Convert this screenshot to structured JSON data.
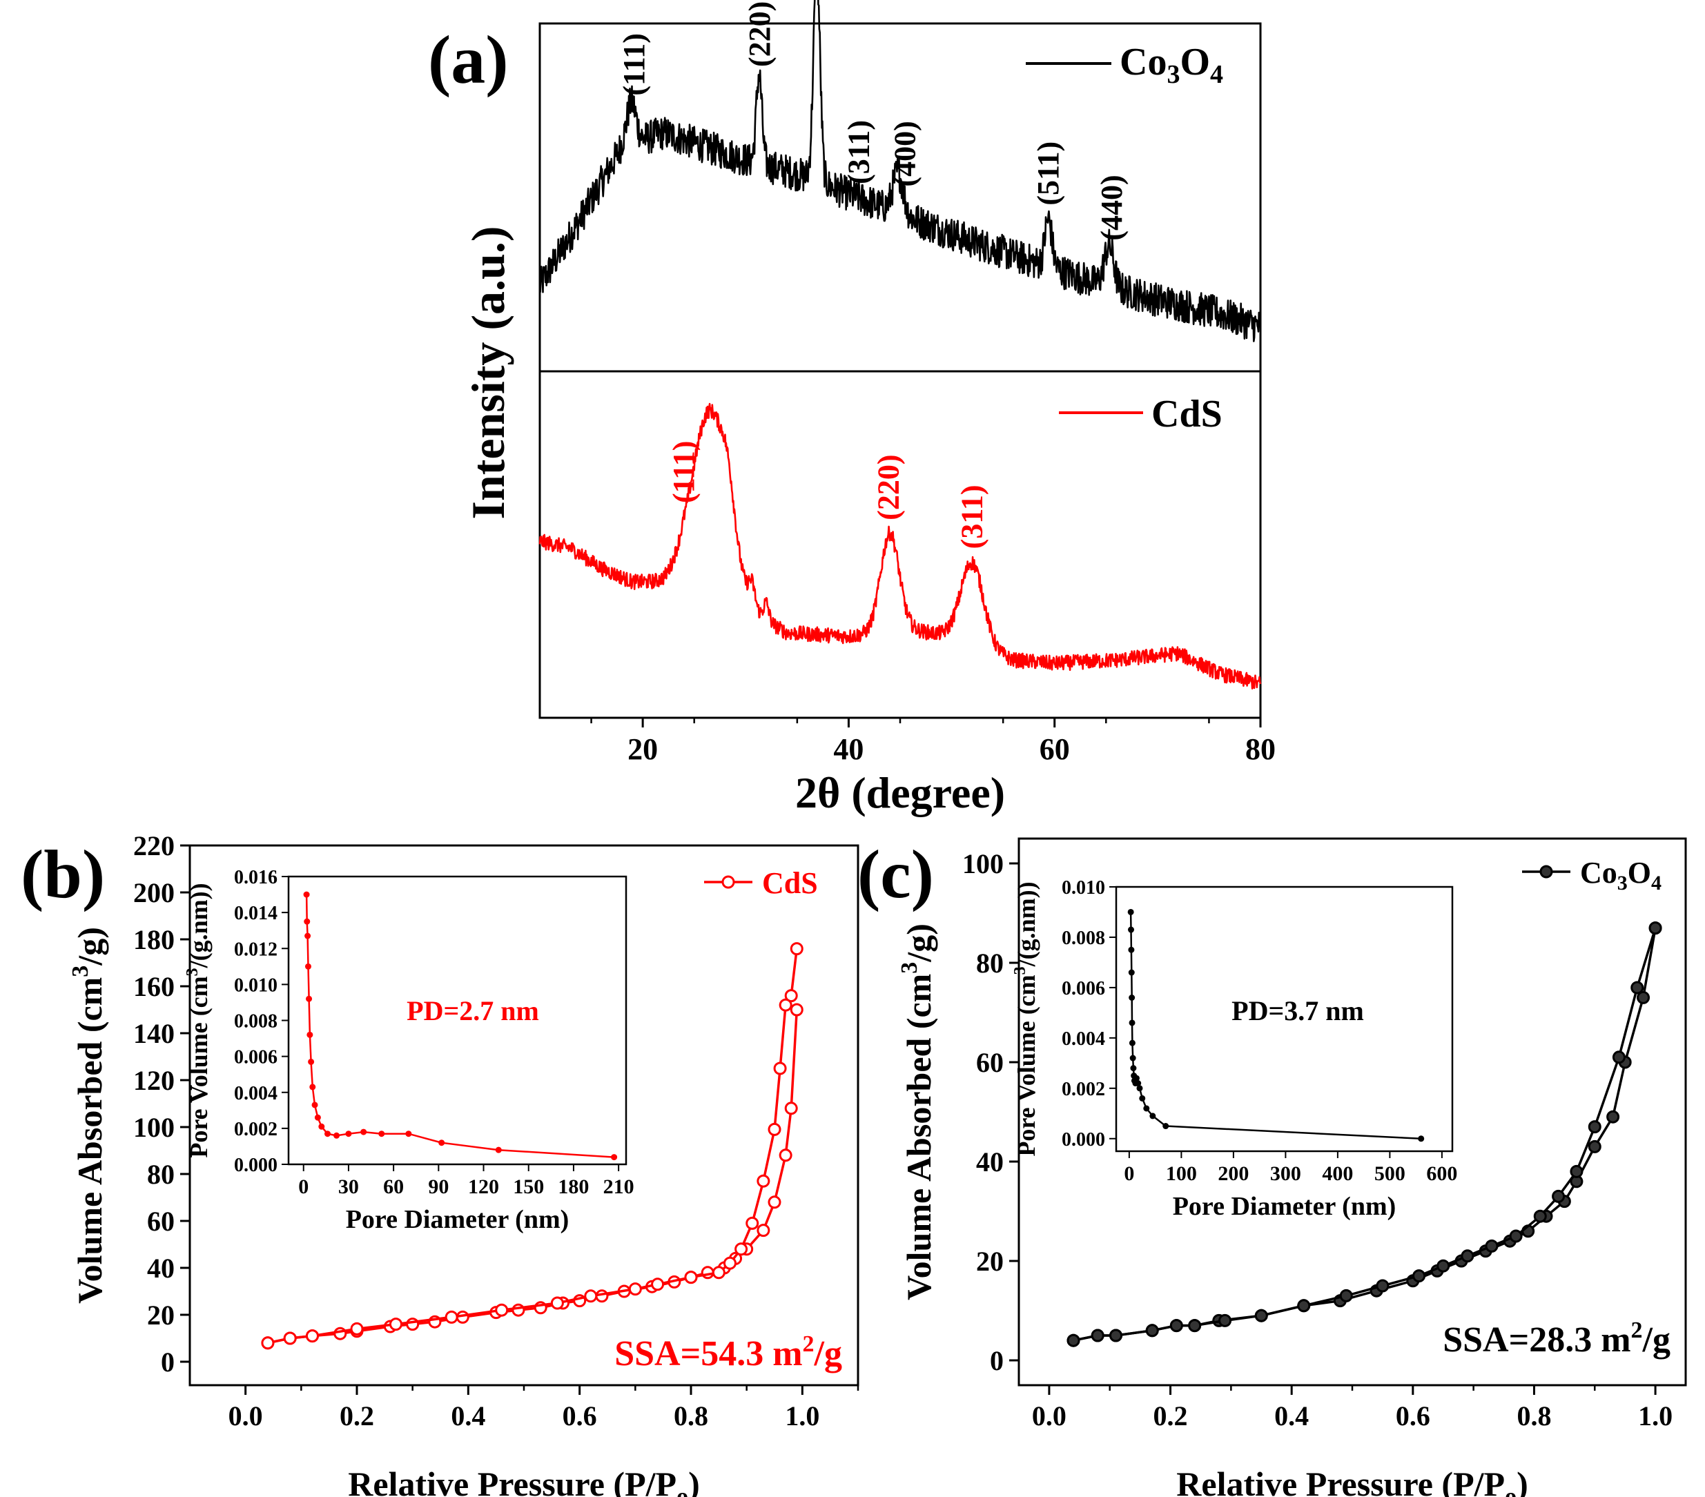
{
  "chart_data": [
    {
      "panel": "(a)",
      "type": "line",
      "title": "",
      "xlabel": "2θ (degree)",
      "ylabel": "Intensity (a.u.)",
      "xlim": [
        10,
        80
      ],
      "xticks": [
        20,
        40,
        60,
        80
      ],
      "colors": {
        "co3o4": "#000000",
        "cds": "#ff0000"
      },
      "series": [
        {
          "name": "Co3O4",
          "legend_label": "Co",
          "legend_sub1": "3",
          "legend_mid": "O",
          "legend_sub2": "4",
          "color": "#000000",
          "profile": {
            "baseline": [
              [
                10,
                0.25
              ],
              [
                14,
                0.45
              ],
              [
                18,
                0.66
              ],
              [
                22,
                0.7
              ],
              [
                26,
                0.66
              ],
              [
                30,
                0.62
              ],
              [
                36,
                0.57
              ],
              [
                40,
                0.52
              ],
              [
                46,
                0.45
              ],
              [
                52,
                0.38
              ],
              [
                58,
                0.32
              ],
              [
                64,
                0.26
              ],
              [
                70,
                0.21
              ],
              [
                76,
                0.17
              ],
              [
                80,
                0.13
              ]
            ],
            "peaks": [
              [
                18.9,
                0.12,
                0.45
              ],
              [
                31.3,
                0.26,
                0.28
              ],
              [
                36.9,
                0.62,
                0.32
              ],
              [
                44.8,
                0.12,
                0.5
              ],
              [
                59.4,
                0.14,
                0.35
              ],
              [
                65.3,
                0.12,
                0.45
              ]
            ],
            "noise": 0.05
          },
          "peak_labels": [
            {
              "x": 19.2,
              "text": "(111)"
            },
            {
              "x": 31.4,
              "text": "(220)"
            },
            {
              "x": 41.0,
              "text": "(311)"
            },
            {
              "x": 45.5,
              "text": "(400)"
            },
            {
              "x": 59.4,
              "text": "(511)"
            },
            {
              "x": 65.6,
              "text": "(440)"
            }
          ]
        },
        {
          "name": "CdS",
          "legend_label": "CdS",
          "color": "#ff0000",
          "profile": {
            "baseline": [
              [
                10,
                0.52
              ],
              [
                13,
                0.5
              ],
              [
                16,
                0.44
              ],
              [
                19,
                0.4
              ],
              [
                22,
                0.4
              ],
              [
                24,
                0.43
              ],
              [
                34,
                0.25
              ],
              [
                40,
                0.24
              ],
              [
                46,
                0.26
              ],
              [
                50,
                0.24
              ],
              [
                56,
                0.17
              ],
              [
                60,
                0.16
              ],
              [
                66,
                0.17
              ],
              [
                72,
                0.19
              ],
              [
                76,
                0.13
              ],
              [
                80,
                0.1
              ]
            ],
            "peaks": [
              [
                26.6,
                0.52,
                1.7
              ],
              [
                28.3,
                0.1,
                0.6
              ],
              [
                30.6,
                0.06,
                0.3
              ],
              [
                32.0,
                0.05,
                0.25
              ],
              [
                44.0,
                0.29,
                0.9
              ],
              [
                52.0,
                0.24,
                1.1
              ]
            ],
            "noise": 0.022
          },
          "peak_labels": [
            {
              "x": 24.0,
              "text": "(111)"
            },
            {
              "x": 43.9,
              "text": "(220)"
            },
            {
              "x": 52.0,
              "text": "(311)"
            }
          ]
        }
      ]
    },
    {
      "panel": "(b)",
      "type": "line",
      "title": "",
      "xlabel": "Relative Pressure (P/P",
      "xlabel_sub": "o",
      "xlabel_end": ")",
      "ylabel": "Volume Absorbed (cm",
      "ylabel_sup": "3",
      "ylabel_end": "/g)",
      "xlim": [
        -0.1,
        1.1
      ],
      "ylim": [
        -10,
        220
      ],
      "xticks": [
        "0.0",
        "0.2",
        "0.4",
        "0.6",
        "0.8",
        "1.0"
      ],
      "yticks": [
        "0",
        "20",
        "40",
        "60",
        "80",
        "100",
        "120",
        "140",
        "160",
        "180",
        "200",
        "220"
      ],
      "legend": "CdS",
      "annotation": "SSA=54.3 m",
      "annotation_sup": "2",
      "annotation_end": "/g",
      "color": "#ff0000",
      "adsorption": {
        "x": [
          0.04,
          0.08,
          0.12,
          0.17,
          0.2,
          0.26,
          0.3,
          0.34,
          0.39,
          0.45,
          0.49,
          0.53,
          0.57,
          0.6,
          0.64,
          0.68,
          0.73,
          0.77,
          0.8,
          0.83,
          0.86,
          0.88,
          0.9,
          0.93,
          0.95,
          0.97,
          0.98,
          0.99
        ],
        "y": [
          8,
          10,
          11,
          12,
          13,
          15,
          16,
          17,
          19,
          21,
          22,
          23,
          25,
          26,
          28,
          30,
          32,
          34,
          36,
          38,
          40,
          44,
          48,
          56,
          68,
          88,
          108,
          150
        ]
      },
      "desorption": {
        "x": [
          0.99,
          0.98,
          0.97,
          0.96,
          0.95,
          0.93,
          0.91,
          0.89,
          0.87,
          0.85,
          0.8,
          0.74,
          0.7,
          0.62,
          0.56,
          0.46,
          0.37,
          0.27,
          0.2,
          0.12,
          0.08,
          0.04
        ],
        "y": [
          176,
          156,
          152,
          125,
          99,
          77,
          59,
          48,
          42,
          38,
          36,
          33,
          31,
          28,
          25,
          22,
          19,
          16,
          14,
          11,
          10,
          8
        ]
      },
      "inset": {
        "xlabel": "Pore Diameter (nm)",
        "ylabel": "Pore Volume (cm",
        "ylabel_sup": "3",
        "ylabel_end": "/(g.nm))",
        "xlim": [
          -10,
          215
        ],
        "ylim": [
          0,
          0.016
        ],
        "xticks": [
          "0",
          "30",
          "60",
          "90",
          "120",
          "150",
          "180",
          "210"
        ],
        "yticks": [
          "0.000",
          "0.002",
          "0.004",
          "0.006",
          "0.008",
          "0.010",
          "0.012",
          "0.014",
          "0.016"
        ],
        "annotation": "PD=2.7 nm",
        "x": [
          2.0,
          2.3,
          2.7,
          3.1,
          3.6,
          4.2,
          5.0,
          6.0,
          7.5,
          9.5,
          12,
          16,
          22,
          30,
          40,
          52,
          70,
          92,
          130,
          207
        ],
        "y": [
          0.015,
          0.0135,
          0.0127,
          0.011,
          0.0092,
          0.0072,
          0.0057,
          0.0043,
          0.0033,
          0.0026,
          0.0021,
          0.0017,
          0.0016,
          0.0017,
          0.0018,
          0.0017,
          0.0017,
          0.0012,
          0.0008,
          0.0004
        ]
      }
    },
    {
      "panel": "(c)",
      "type": "line",
      "title": "",
      "xlabel": "Relative Pressure (P/P",
      "xlabel_sub": "o",
      "xlabel_end": ")",
      "ylabel": "Volume Absorbed (cm",
      "ylabel_sup": "3",
      "ylabel_end": "/g)",
      "xlim": [
        -0.05,
        1.05
      ],
      "ylim": [
        -5,
        105
      ],
      "xticks": [
        "0.0",
        "0.2",
        "0.4",
        "0.6",
        "0.8",
        "1.0"
      ],
      "yticks": [
        "0",
        "20",
        "40",
        "60",
        "80",
        "100"
      ],
      "legend": "Co",
      "legend_sub1": "3",
      "legend_mid": "O",
      "legend_sub2": "4",
      "annotation": "SSA=28.3 m",
      "annotation_sup": "2",
      "annotation_end": "/g",
      "color": "#000000",
      "adsorption": {
        "x": [
          0.04,
          0.08,
          0.11,
          0.17,
          0.21,
          0.24,
          0.28,
          0.35,
          0.42,
          0.48,
          0.54,
          0.6,
          0.64,
          0.68,
          0.72,
          0.76,
          0.79,
          0.82,
          0.85,
          0.87,
          0.9,
          0.93,
          0.95,
          0.98,
          1.0
        ],
        "y": [
          4,
          5,
          5,
          6,
          7,
          7,
          8,
          9,
          11,
          12,
          14,
          16,
          18,
          20,
          22,
          24,
          26,
          29,
          32,
          36,
          43,
          49,
          60,
          73,
          87
        ]
      },
      "desorption": {
        "x": [
          1.0,
          0.97,
          0.94,
          0.9,
          0.87,
          0.84,
          0.81,
          0.77,
          0.73,
          0.69,
          0.65,
          0.61,
          0.55,
          0.49,
          0.42,
          0.35,
          0.29,
          0.24,
          0.21,
          0.17,
          0.11,
          0.08,
          0.04
        ],
        "y": [
          87,
          75,
          61,
          47,
          38,
          33,
          29,
          25,
          23,
          21,
          19,
          17,
          15,
          13,
          11,
          9,
          8,
          7,
          7,
          6,
          5,
          5,
          4
        ]
      },
      "inset": {
        "xlabel": "Pore Diameter (nm)",
        "ylabel": "Pore Volume (cm",
        "ylabel_sup": "3",
        "ylabel_end": "/(g.nm))",
        "xlim": [
          -25,
          620
        ],
        "ylim": [
          -0.0005,
          0.01
        ],
        "xticks": [
          "0",
          "100",
          "200",
          "300",
          "400",
          "500",
          "600"
        ],
        "yticks": [
          "0.000",
          "0.002",
          "0.004",
          "0.006",
          "0.008",
          "0.010"
        ],
        "annotation": "PD=3.7 nm",
        "x": [
          3,
          3.5,
          4,
          4.5,
          5,
          5.5,
          6,
          7,
          8,
          9,
          10,
          12,
          14,
          17,
          20,
          25,
          33,
          45,
          70,
          560
        ],
        "y": [
          0.009,
          0.0083,
          0.0075,
          0.0066,
          0.0056,
          0.0046,
          0.0038,
          0.0032,
          0.0028,
          0.0025,
          0.0023,
          0.0022,
          0.0024,
          0.0022,
          0.002,
          0.0016,
          0.0012,
          0.0009,
          0.0005,
          0.0
        ]
      }
    }
  ]
}
